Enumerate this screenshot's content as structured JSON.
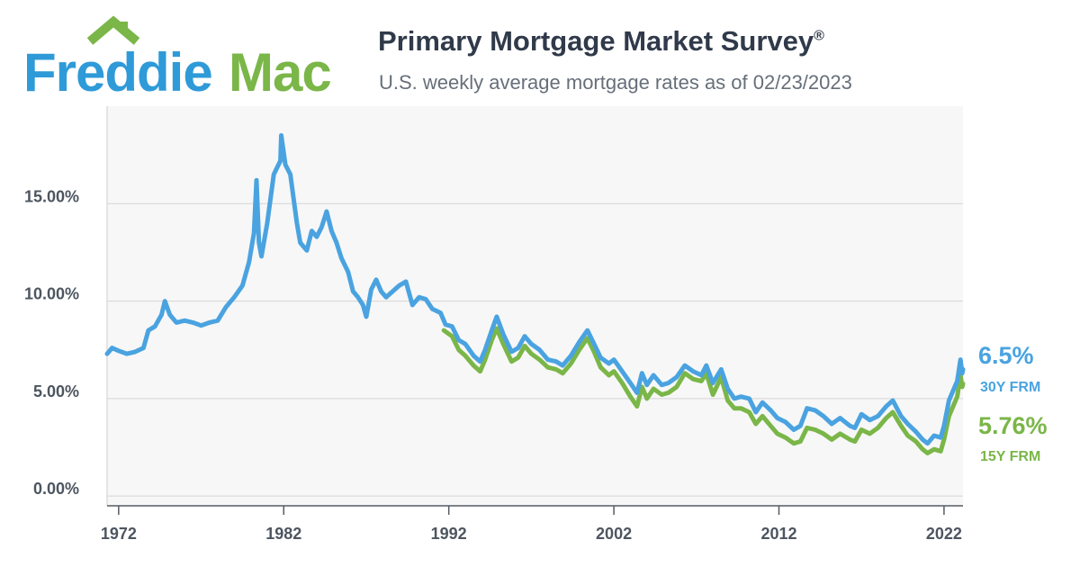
{
  "brand": {
    "word_blue": "Freddie",
    "word_green": "Mac",
    "blue": "#2f9ad8",
    "green": "#7ab648"
  },
  "header": {
    "title": "Primary Mortgage Market Survey",
    "title_mark": "®",
    "subtitle": "U.S. weekly average mortgage rates as of 02/23/2023"
  },
  "end_labels": {
    "frm30_value": "6.5%",
    "frm30_name": "30Y FRM",
    "frm15_value": "5.76%",
    "frm15_name": "15Y FRM"
  },
  "chart_data": {
    "type": "line",
    "title": "Primary Mortgage Market Survey®",
    "subtitle": "U.S. weekly average mortgage rates as of 02/23/2023",
    "xlabel": "",
    "ylabel": "",
    "xlim": [
      1971.3,
      2023.15
    ],
    "ylim": [
      -0.5,
      20
    ],
    "x_ticks": [
      1972,
      1982,
      1992,
      2002,
      2012,
      2022
    ],
    "y_ticks": [
      0,
      5,
      10,
      15
    ],
    "y_tick_labels": [
      "0.00%",
      "5.00%",
      "10.00%",
      "15.00%"
    ],
    "grid": "horizontal",
    "legend": "right end labels",
    "series": [
      {
        "name": "30Y FRM",
        "color": "#4aa3e0",
        "points": [
          [
            1971.3,
            7.3
          ],
          [
            1971.6,
            7.6
          ],
          [
            1972.0,
            7.45
          ],
          [
            1972.5,
            7.3
          ],
          [
            1973.0,
            7.4
          ],
          [
            1973.5,
            7.6
          ],
          [
            1973.8,
            8.5
          ],
          [
            1974.2,
            8.7
          ],
          [
            1974.6,
            9.3
          ],
          [
            1974.8,
            10.0
          ],
          [
            1975.1,
            9.3
          ],
          [
            1975.5,
            8.9
          ],
          [
            1976.0,
            9.0
          ],
          [
            1976.5,
            8.9
          ],
          [
            1977.0,
            8.75
          ],
          [
            1977.5,
            8.9
          ],
          [
            1978.0,
            9.0
          ],
          [
            1978.5,
            9.7
          ],
          [
            1979.0,
            10.2
          ],
          [
            1979.5,
            10.8
          ],
          [
            1979.9,
            12.0
          ],
          [
            1980.2,
            13.5
          ],
          [
            1980.35,
            16.2
          ],
          [
            1980.5,
            13.0
          ],
          [
            1980.65,
            12.3
          ],
          [
            1981.0,
            14.0
          ],
          [
            1981.4,
            16.5
          ],
          [
            1981.8,
            17.2
          ],
          [
            1981.85,
            18.5
          ],
          [
            1982.1,
            17.0
          ],
          [
            1982.4,
            16.5
          ],
          [
            1982.8,
            14.0
          ],
          [
            1983.0,
            13.0
          ],
          [
            1983.4,
            12.6
          ],
          [
            1983.7,
            13.6
          ],
          [
            1984.0,
            13.3
          ],
          [
            1984.3,
            13.8
          ],
          [
            1984.6,
            14.6
          ],
          [
            1984.9,
            13.6
          ],
          [
            1985.2,
            13.0
          ],
          [
            1985.5,
            12.2
          ],
          [
            1985.9,
            11.5
          ],
          [
            1986.2,
            10.5
          ],
          [
            1986.5,
            10.2
          ],
          [
            1986.8,
            9.8
          ],
          [
            1987.0,
            9.2
          ],
          [
            1987.3,
            10.6
          ],
          [
            1987.6,
            11.1
          ],
          [
            1987.9,
            10.5
          ],
          [
            1988.2,
            10.2
          ],
          [
            1988.6,
            10.5
          ],
          [
            1989.0,
            10.8
          ],
          [
            1989.4,
            11.0
          ],
          [
            1989.8,
            9.8
          ],
          [
            1990.2,
            10.2
          ],
          [
            1990.6,
            10.1
          ],
          [
            1991.0,
            9.6
          ],
          [
            1991.5,
            9.4
          ],
          [
            1991.8,
            8.8
          ],
          [
            1992.2,
            8.7
          ],
          [
            1992.6,
            8.0
          ],
          [
            1993.0,
            7.8
          ],
          [
            1993.5,
            7.2
          ],
          [
            1993.9,
            6.9
          ],
          [
            1994.2,
            7.5
          ],
          [
            1994.6,
            8.5
          ],
          [
            1994.9,
            9.2
          ],
          [
            1995.3,
            8.3
          ],
          [
            1995.8,
            7.4
          ],
          [
            1996.2,
            7.6
          ],
          [
            1996.6,
            8.2
          ],
          [
            1997.0,
            7.8
          ],
          [
            1997.5,
            7.5
          ],
          [
            1998.0,
            7.0
          ],
          [
            1998.5,
            6.9
          ],
          [
            1998.9,
            6.7
          ],
          [
            1999.4,
            7.2
          ],
          [
            1999.9,
            7.9
          ],
          [
            2000.4,
            8.5
          ],
          [
            2000.8,
            7.8
          ],
          [
            2001.2,
            7.1
          ],
          [
            2001.7,
            6.8
          ],
          [
            2002.0,
            7.0
          ],
          [
            2002.5,
            6.4
          ],
          [
            2003.0,
            5.8
          ],
          [
            2003.4,
            5.3
          ],
          [
            2003.7,
            6.3
          ],
          [
            2004.0,
            5.7
          ],
          [
            2004.4,
            6.2
          ],
          [
            2004.9,
            5.7
          ],
          [
            2005.3,
            5.8
          ],
          [
            2005.8,
            6.1
          ],
          [
            2006.3,
            6.7
          ],
          [
            2006.8,
            6.4
          ],
          [
            2007.3,
            6.2
          ],
          [
            2007.6,
            6.7
          ],
          [
            2008.0,
            5.8
          ],
          [
            2008.5,
            6.5
          ],
          [
            2008.9,
            5.5
          ],
          [
            2009.3,
            5.0
          ],
          [
            2009.7,
            5.1
          ],
          [
            2010.2,
            5.0
          ],
          [
            2010.6,
            4.3
          ],
          [
            2011.0,
            4.8
          ],
          [
            2011.5,
            4.4
          ],
          [
            2011.9,
            4.0
          ],
          [
            2012.4,
            3.8
          ],
          [
            2012.9,
            3.4
          ],
          [
            2013.3,
            3.6
          ],
          [
            2013.7,
            4.5
          ],
          [
            2014.2,
            4.4
          ],
          [
            2014.7,
            4.1
          ],
          [
            2015.2,
            3.7
          ],
          [
            2015.7,
            4.0
          ],
          [
            2016.3,
            3.6
          ],
          [
            2016.6,
            3.5
          ],
          [
            2017.0,
            4.2
          ],
          [
            2017.5,
            3.9
          ],
          [
            2018.0,
            4.1
          ],
          [
            2018.5,
            4.6
          ],
          [
            2018.9,
            4.9
          ],
          [
            2019.4,
            4.1
          ],
          [
            2019.8,
            3.7
          ],
          [
            2020.3,
            3.3
          ],
          [
            2020.7,
            2.9
          ],
          [
            2021.0,
            2.7
          ],
          [
            2021.4,
            3.1
          ],
          [
            2021.8,
            3.0
          ],
          [
            2022.0,
            3.6
          ],
          [
            2022.3,
            4.9
          ],
          [
            2022.6,
            5.5
          ],
          [
            2022.8,
            5.9
          ],
          [
            2023.0,
            7.0
          ],
          [
            2023.1,
            6.3
          ],
          [
            2023.15,
            6.5
          ]
        ]
      },
      {
        "name": "15Y FRM",
        "color": "#7ab648",
        "points": [
          [
            1991.7,
            8.5
          ],
          [
            1992.2,
            8.2
          ],
          [
            1992.6,
            7.5
          ],
          [
            1993.0,
            7.2
          ],
          [
            1993.5,
            6.7
          ],
          [
            1993.9,
            6.4
          ],
          [
            1994.2,
            7.0
          ],
          [
            1994.6,
            8.0
          ],
          [
            1994.9,
            8.6
          ],
          [
            1995.3,
            7.8
          ],
          [
            1995.8,
            6.9
          ],
          [
            1996.2,
            7.1
          ],
          [
            1996.6,
            7.7
          ],
          [
            1997.0,
            7.3
          ],
          [
            1997.5,
            7.0
          ],
          [
            1998.0,
            6.6
          ],
          [
            1998.5,
            6.5
          ],
          [
            1998.9,
            6.3
          ],
          [
            1999.4,
            6.8
          ],
          [
            1999.9,
            7.5
          ],
          [
            2000.4,
            8.1
          ],
          [
            2000.8,
            7.4
          ],
          [
            2001.2,
            6.6
          ],
          [
            2001.7,
            6.2
          ],
          [
            2002.0,
            6.4
          ],
          [
            2002.5,
            5.8
          ],
          [
            2003.0,
            5.1
          ],
          [
            2003.4,
            4.6
          ],
          [
            2003.7,
            5.6
          ],
          [
            2004.0,
            5.0
          ],
          [
            2004.4,
            5.5
          ],
          [
            2004.9,
            5.2
          ],
          [
            2005.3,
            5.3
          ],
          [
            2005.8,
            5.6
          ],
          [
            2006.3,
            6.3
          ],
          [
            2006.8,
            6.0
          ],
          [
            2007.3,
            5.9
          ],
          [
            2007.6,
            6.3
          ],
          [
            2008.0,
            5.2
          ],
          [
            2008.5,
            6.1
          ],
          [
            2008.9,
            4.9
          ],
          [
            2009.3,
            4.5
          ],
          [
            2009.7,
            4.5
          ],
          [
            2010.2,
            4.3
          ],
          [
            2010.6,
            3.7
          ],
          [
            2011.0,
            4.1
          ],
          [
            2011.5,
            3.6
          ],
          [
            2011.9,
            3.2
          ],
          [
            2012.4,
            3.0
          ],
          [
            2012.9,
            2.7
          ],
          [
            2013.3,
            2.8
          ],
          [
            2013.7,
            3.5
          ],
          [
            2014.2,
            3.4
          ],
          [
            2014.7,
            3.2
          ],
          [
            2015.2,
            2.9
          ],
          [
            2015.7,
            3.2
          ],
          [
            2016.3,
            2.9
          ],
          [
            2016.6,
            2.8
          ],
          [
            2017.0,
            3.4
          ],
          [
            2017.5,
            3.2
          ],
          [
            2018.0,
            3.5
          ],
          [
            2018.5,
            4.0
          ],
          [
            2018.9,
            4.3
          ],
          [
            2019.4,
            3.6
          ],
          [
            2019.8,
            3.1
          ],
          [
            2020.3,
            2.8
          ],
          [
            2020.7,
            2.4
          ],
          [
            2021.0,
            2.2
          ],
          [
            2021.4,
            2.4
          ],
          [
            2021.8,
            2.3
          ],
          [
            2022.0,
            2.9
          ],
          [
            2022.3,
            4.1
          ],
          [
            2022.6,
            4.7
          ],
          [
            2022.8,
            5.1
          ],
          [
            2023.0,
            6.2
          ],
          [
            2023.1,
            5.6
          ],
          [
            2023.15,
            5.76
          ]
        ]
      }
    ]
  }
}
